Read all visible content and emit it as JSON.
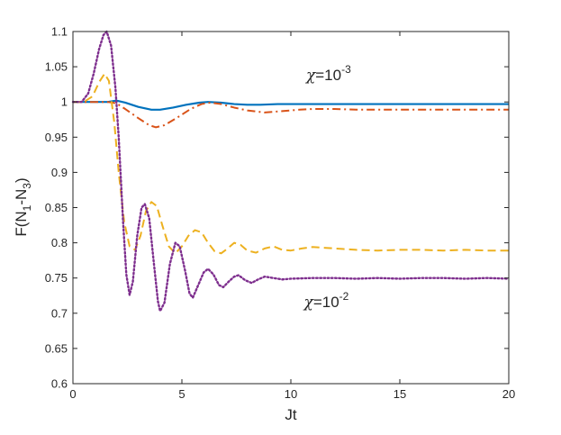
{
  "chart_data": {
    "type": "line",
    "xlabel": "Jt",
    "ylabel_main": "F(N",
    "ylabel_sub1": "1",
    "ylabel_mid": "-N",
    "ylabel_sub2": "3",
    "ylabel_end": ")",
    "xlim": [
      0,
      20
    ],
    "ylim": [
      0.6,
      1.1
    ],
    "xticks": [
      0,
      5,
      10,
      15,
      20
    ],
    "xtick_labels": [
      "0",
      "5",
      "10",
      "15",
      "20"
    ],
    "yticks": [
      0.6,
      0.65,
      0.7,
      0.75,
      0.8,
      0.85,
      0.9,
      0.95,
      1.0,
      1.05,
      1.1
    ],
    "ytick_labels": [
      "0.6",
      "0.65",
      "0.7",
      "0.75",
      "0.8",
      "0.85",
      "0.9",
      "0.95",
      "1",
      "1.05",
      "1.1"
    ],
    "grid": false,
    "annotations": [
      {
        "symbol": "χ",
        "text": "=10",
        "exponent": "-3",
        "x": 10.7,
        "y": 1.031
      },
      {
        "symbol": "χ",
        "text": "=10",
        "exponent": "-2",
        "x": 10.6,
        "y": 0.709
      }
    ],
    "series": [
      {
        "color": "#0072BD",
        "style": "solid",
        "width": 2.2,
        "points": [
          [
            0,
            1.0
          ],
          [
            1.0,
            1.0
          ],
          [
            1.6,
            1.0
          ],
          [
            2.0,
            1.002
          ],
          [
            2.4,
            0.999
          ],
          [
            3.0,
            0.993
          ],
          [
            3.6,
            0.989
          ],
          [
            4.0,
            0.989
          ],
          [
            4.6,
            0.992
          ],
          [
            5.2,
            0.996
          ],
          [
            5.8,
            0.999
          ],
          [
            6.2,
            1.0
          ],
          [
            6.8,
            0.999
          ],
          [
            7.4,
            0.997
          ],
          [
            8.0,
            0.996
          ],
          [
            8.6,
            0.996
          ],
          [
            9.4,
            0.997
          ],
          [
            10.2,
            0.997
          ],
          [
            11.0,
            0.997
          ],
          [
            12.0,
            0.997
          ],
          [
            14.0,
            0.997
          ],
          [
            16.0,
            0.997
          ],
          [
            18.0,
            0.997
          ],
          [
            20.0,
            0.997
          ]
        ]
      },
      {
        "color": "#D95319",
        "style": "dashdot",
        "width": 2.0,
        "points": [
          [
            0,
            1.0
          ],
          [
            1.0,
            1.0
          ],
          [
            1.6,
            1.0
          ],
          [
            2.0,
            0.998
          ],
          [
            2.4,
            0.99
          ],
          [
            3.0,
            0.977
          ],
          [
            3.5,
            0.967
          ],
          [
            3.8,
            0.964
          ],
          [
            4.2,
            0.967
          ],
          [
            4.8,
            0.978
          ],
          [
            5.4,
            0.99
          ],
          [
            5.9,
            0.997
          ],
          [
            6.3,
            0.999
          ],
          [
            6.8,
            0.997
          ],
          [
            7.4,
            0.992
          ],
          [
            8.0,
            0.988
          ],
          [
            8.8,
            0.985
          ],
          [
            9.6,
            0.987
          ],
          [
            10.4,
            0.989
          ],
          [
            11.0,
            0.99
          ],
          [
            12.0,
            0.99
          ],
          [
            13.0,
            0.989
          ],
          [
            14.0,
            0.989
          ],
          [
            16.0,
            0.989
          ],
          [
            18.0,
            0.989
          ],
          [
            20.0,
            0.989
          ]
        ]
      },
      {
        "color": "#EDB120",
        "style": "dashed",
        "width": 2.0,
        "points": [
          [
            0,
            1.0
          ],
          [
            0.5,
            1.0
          ],
          [
            0.9,
            1.008
          ],
          [
            1.2,
            1.028
          ],
          [
            1.45,
            1.04
          ],
          [
            1.65,
            1.03
          ],
          [
            1.9,
            0.97
          ],
          [
            2.1,
            0.9
          ],
          [
            2.35,
            0.83
          ],
          [
            2.6,
            0.795
          ],
          [
            2.85,
            0.79
          ],
          [
            3.1,
            0.81
          ],
          [
            3.35,
            0.845
          ],
          [
            3.6,
            0.858
          ],
          [
            3.85,
            0.852
          ],
          [
            4.1,
            0.825
          ],
          [
            4.4,
            0.795
          ],
          [
            4.7,
            0.785
          ],
          [
            5.0,
            0.795
          ],
          [
            5.3,
            0.81
          ],
          [
            5.6,
            0.818
          ],
          [
            5.9,
            0.815
          ],
          [
            6.2,
            0.8
          ],
          [
            6.5,
            0.788
          ],
          [
            6.8,
            0.785
          ],
          [
            7.1,
            0.792
          ],
          [
            7.4,
            0.8
          ],
          [
            7.7,
            0.797
          ],
          [
            8.0,
            0.789
          ],
          [
            8.4,
            0.786
          ],
          [
            8.8,
            0.792
          ],
          [
            9.2,
            0.795
          ],
          [
            9.6,
            0.79
          ],
          [
            10.0,
            0.789
          ],
          [
            10.5,
            0.792
          ],
          [
            11.0,
            0.794
          ],
          [
            12.0,
            0.792
          ],
          [
            13.0,
            0.79
          ],
          [
            14.0,
            0.789
          ],
          [
            15.0,
            0.79
          ],
          [
            16.0,
            0.79
          ],
          [
            17.0,
            0.789
          ],
          [
            18.0,
            0.79
          ],
          [
            19.0,
            0.789
          ],
          [
            20.0,
            0.789
          ]
        ]
      },
      {
        "color": "#7E2F8E",
        "style": "dotted",
        "width": 2.4,
        "points": [
          [
            0,
            1.0
          ],
          [
            0.4,
            1.0
          ],
          [
            0.7,
            1.012
          ],
          [
            0.95,
            1.04
          ],
          [
            1.2,
            1.075
          ],
          [
            1.4,
            1.095
          ],
          [
            1.55,
            1.1
          ],
          [
            1.75,
            1.08
          ],
          [
            1.95,
            1.02
          ],
          [
            2.1,
            0.95
          ],
          [
            2.3,
            0.83
          ],
          [
            2.45,
            0.755
          ],
          [
            2.6,
            0.726
          ],
          [
            2.75,
            0.745
          ],
          [
            2.95,
            0.81
          ],
          [
            3.15,
            0.85
          ],
          [
            3.3,
            0.855
          ],
          [
            3.5,
            0.835
          ],
          [
            3.7,
            0.775
          ],
          [
            3.9,
            0.717
          ],
          [
            4.0,
            0.703
          ],
          [
            4.2,
            0.715
          ],
          [
            4.45,
            0.77
          ],
          [
            4.7,
            0.8
          ],
          [
            4.9,
            0.795
          ],
          [
            5.15,
            0.76
          ],
          [
            5.35,
            0.728
          ],
          [
            5.5,
            0.722
          ],
          [
            5.75,
            0.74
          ],
          [
            6.0,
            0.758
          ],
          [
            6.2,
            0.763
          ],
          [
            6.45,
            0.755
          ],
          [
            6.7,
            0.74
          ],
          [
            6.9,
            0.737
          ],
          [
            7.15,
            0.745
          ],
          [
            7.4,
            0.752
          ],
          [
            7.6,
            0.754
          ],
          [
            7.9,
            0.747
          ],
          [
            8.2,
            0.743
          ],
          [
            8.5,
            0.748
          ],
          [
            8.8,
            0.752
          ],
          [
            9.2,
            0.75
          ],
          [
            9.6,
            0.748
          ],
          [
            10.0,
            0.749
          ],
          [
            11.0,
            0.75
          ],
          [
            12.0,
            0.75
          ],
          [
            13.0,
            0.749
          ],
          [
            14.0,
            0.75
          ],
          [
            15.0,
            0.749
          ],
          [
            16.0,
            0.75
          ],
          [
            17.0,
            0.75
          ],
          [
            18.0,
            0.749
          ],
          [
            19.0,
            0.75
          ],
          [
            20.0,
            0.749
          ]
        ]
      }
    ]
  }
}
